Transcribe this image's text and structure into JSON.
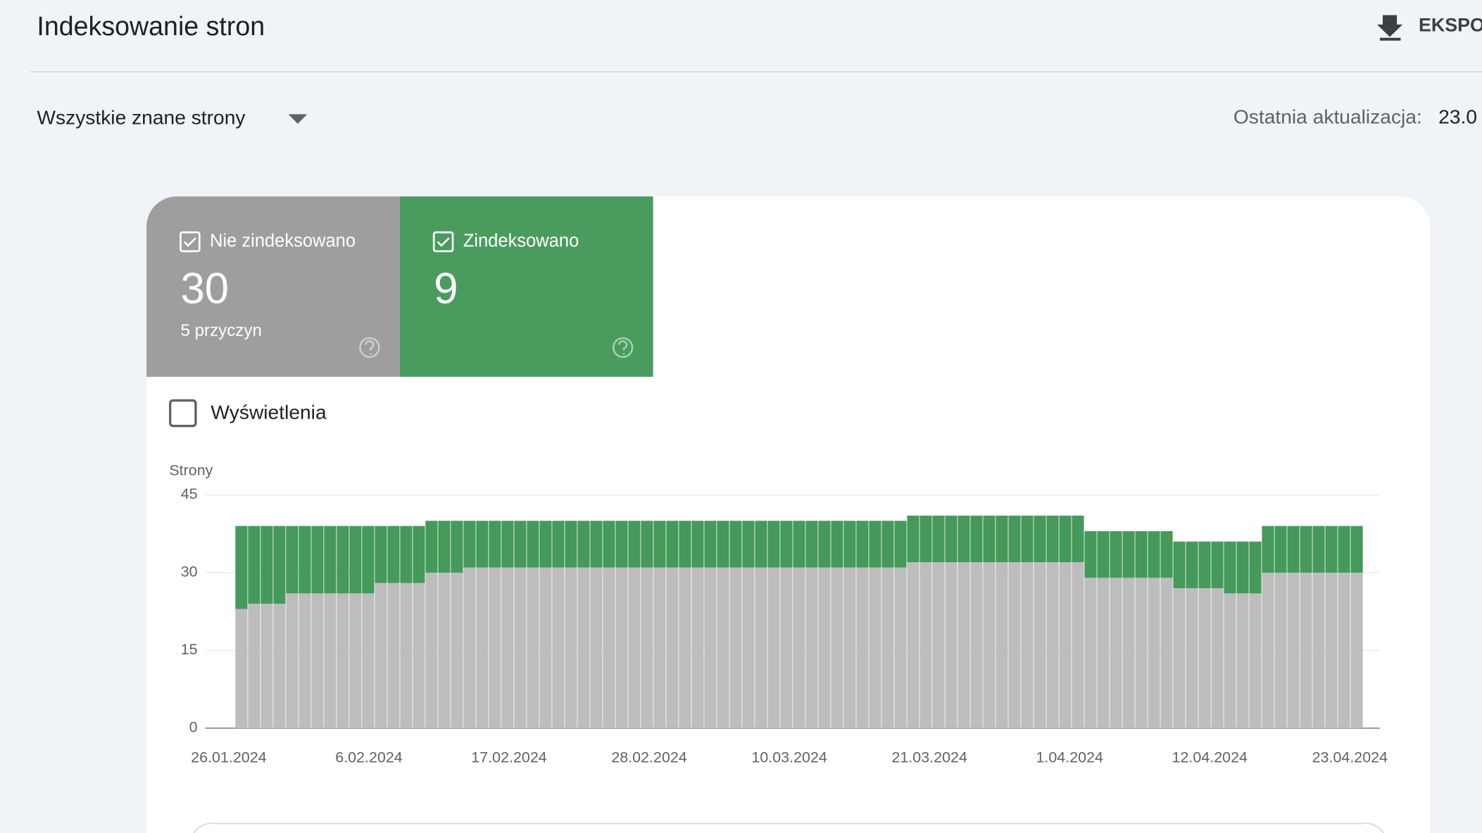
{
  "header": {
    "title": "Indeksowanie stron",
    "export": "EKSPO"
  },
  "filter": "Wszystkie znane strony",
  "last_update": {
    "label": "Ostatnia aktualizacja:",
    "value": "23.0"
  },
  "cards": [
    {
      "value": 30,
      "sub": "5 przyczyn"
    },
    {
      "value": 9
    }
  ],
  "impressions": "Wyświetlenia",
  "chart_data": {
    "type": "bar",
    "stacked": true,
    "y_label": "Strony",
    "categories": [
      "26.01.2024",
      null,
      null,
      null,
      null,
      null,
      null,
      null,
      null,
      null,
      null,
      "6.02.2024",
      null,
      null,
      null,
      null,
      null,
      null,
      null,
      null,
      null,
      null,
      "17.02.2024",
      null,
      null,
      null,
      null,
      null,
      null,
      null,
      null,
      null,
      null,
      "28.02.2024",
      null,
      null,
      null,
      null,
      null,
      null,
      null,
      null,
      null,
      null,
      "10.03.2024",
      null,
      null,
      null,
      null,
      null,
      null,
      null,
      null,
      null,
      null,
      "21.03.2024",
      null,
      null,
      null,
      null,
      null,
      null,
      null,
      null,
      null,
      null,
      "1.04.2024",
      null,
      null,
      null,
      null,
      null,
      null,
      null,
      null,
      null,
      null,
      "12.04.2024",
      null,
      null,
      null,
      null,
      null,
      null,
      null,
      null,
      null,
      null,
      "23.04.2024"
    ],
    "series": [
      {
        "name": "Nie zindeksowano",
        "color": "#bdbdbd",
        "values": [
          23,
          24,
          24,
          24,
          26,
          26,
          26,
          26,
          26,
          26,
          26,
          28,
          28,
          28,
          28,
          30,
          30,
          30,
          31,
          31,
          31,
          31,
          31,
          31,
          31,
          31,
          31,
          31,
          31,
          31,
          31,
          31,
          31,
          31,
          31,
          31,
          31,
          31,
          31,
          31,
          31,
          31,
          31,
          31,
          31,
          31,
          31,
          31,
          31,
          31,
          31,
          31,
          31,
          32,
          32,
          32,
          32,
          32,
          32,
          32,
          32,
          32,
          32,
          32,
          32,
          32,
          32,
          29,
          29,
          29,
          29,
          29,
          29,
          29,
          27,
          27,
          27,
          27,
          26,
          26,
          26,
          30,
          30,
          30,
          30,
          30,
          30,
          30,
          30
        ]
      },
      {
        "name": "Zindeksowano",
        "color": "#45995b",
        "values": [
          16,
          15,
          15,
          15,
          13,
          13,
          13,
          13,
          13,
          13,
          13,
          11,
          11,
          11,
          11,
          10,
          10,
          10,
          9,
          9,
          9,
          9,
          9,
          9,
          9,
          9,
          9,
          9,
          9,
          9,
          9,
          9,
          9,
          9,
          9,
          9,
          9,
          9,
          9,
          9,
          9,
          9,
          9,
          9,
          9,
          9,
          9,
          9,
          9,
          9,
          9,
          9,
          9,
          9,
          9,
          9,
          9,
          9,
          9,
          9,
          9,
          9,
          9,
          9,
          9,
          9,
          9,
          9,
          9,
          9,
          9,
          9,
          9,
          9,
          9,
          9,
          9,
          9,
          10,
          10,
          10,
          9,
          9,
          9,
          9,
          9,
          9,
          9,
          9
        ]
      }
    ],
    "ylim": [
      0,
      45
    ],
    "yticks": [
      0,
      15,
      30,
      45
    ],
    "grid": true
  }
}
